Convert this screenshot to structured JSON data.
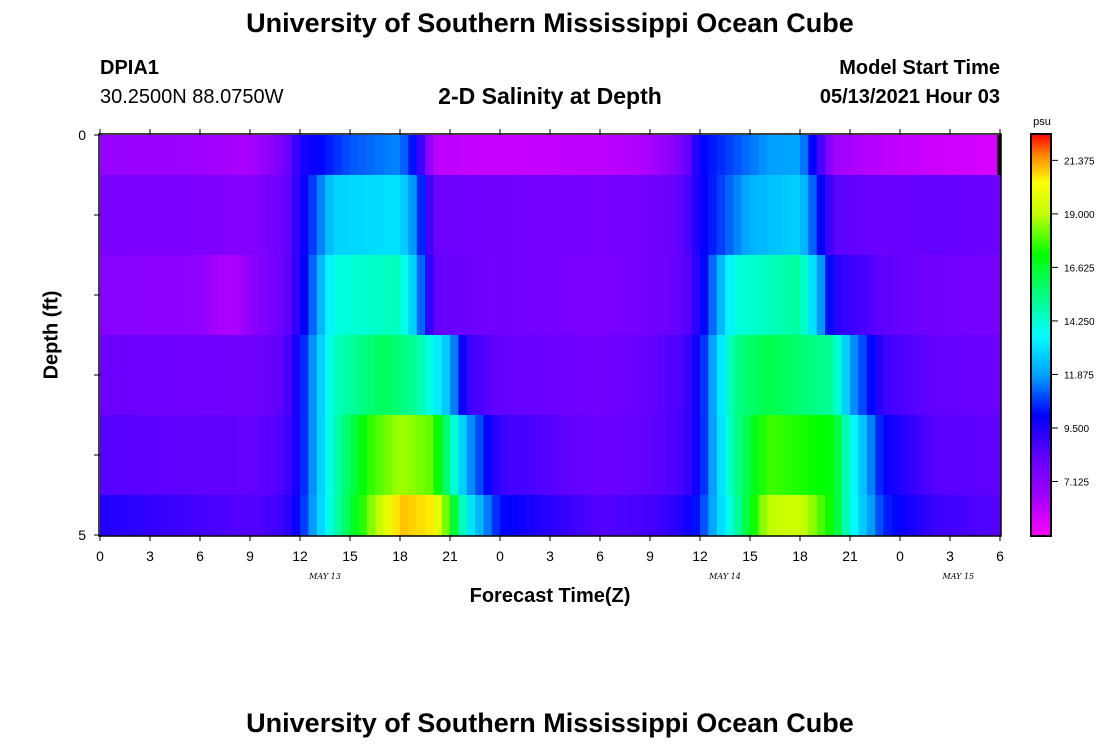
{
  "header": {
    "title": "University of Southern Mississippi Ocean Cube",
    "station_id": "DPIA1",
    "station_coords": "30.2500N  88.0750W",
    "plot_title": "2-D Salinity at Depth",
    "model_start_label": "Model Start Time",
    "model_start_value": "05/13/2021 Hour 03"
  },
  "footer": {
    "title": "University of Southern Mississippi Ocean Cube"
  },
  "chart_data": {
    "type": "heatmap",
    "title": "2-D Salinity at Depth",
    "xlabel": "Forecast Time(Z)",
    "ylabel": "Depth (ft)",
    "colorbar_unit": "psu",
    "colorbar_ticks": [
      "21.375",
      "19.000",
      "16.625",
      "14.250",
      "11.875",
      "9.500",
      "7.125"
    ],
    "colorbar_range": [
      4.75,
      22.5
    ],
    "y_tick_labels": [
      "0",
      "5"
    ],
    "y_range": [
      0,
      5
    ],
    "x_tick_labels": [
      "0",
      "3",
      "6",
      "9",
      "12",
      "15",
      "18",
      "21",
      "0",
      "3",
      "6",
      "9",
      "12",
      "15",
      "18",
      "21",
      "0",
      "3",
      "6"
    ],
    "x_range_hours": [
      0,
      54
    ],
    "date_labels": [
      "MAY 13",
      "MAY 14",
      "MAY 15"
    ],
    "depth_layers": [
      {
        "depth_range": [
          0,
          0.5
        ],
        "key_hours": [
          0,
          6,
          9,
          11,
          12,
          15,
          18,
          19,
          20,
          24,
          30,
          33,
          35,
          36,
          40,
          42,
          43,
          44,
          47,
          50,
          54
        ],
        "values": [
          6.8,
          6.6,
          6.3,
          7.6,
          9.5,
          11.0,
          11.6,
          9.8,
          6.0,
          5.8,
          6.0,
          6.3,
          7.6,
          10.0,
          11.8,
          12.0,
          9.4,
          6.5,
          6.0,
          5.7,
          5.5
        ]
      },
      {
        "depth_range": [
          0.5,
          1.5
        ],
        "key_hours": [
          0,
          6,
          9,
          11,
          12,
          14,
          18,
          19,
          20,
          24,
          30,
          33,
          35,
          36,
          39,
          42,
          43,
          44,
          47,
          50,
          54
        ],
        "values": [
          7.6,
          7.5,
          7.3,
          8.0,
          9.5,
          12.8,
          13.1,
          11.3,
          8.0,
          7.8,
          7.6,
          7.8,
          8.3,
          9.8,
          12.2,
          12.8,
          10.6,
          8.4,
          8.0,
          8.2,
          8.0
        ]
      },
      {
        "depth_range": [
          1.5,
          2.5
        ],
        "key_hours": [
          0,
          6,
          7,
          8,
          9,
          11,
          12,
          14,
          18,
          19,
          20,
          24,
          30,
          33,
          35,
          36,
          38,
          42,
          43,
          44,
          47,
          50,
          54
        ],
        "values": [
          7.2,
          7.0,
          6.4,
          6.2,
          7.0,
          8.0,
          9.5,
          14.0,
          14.6,
          12.2,
          8.2,
          7.8,
          7.5,
          7.8,
          8.2,
          9.6,
          14.0,
          15.0,
          12.5,
          9.4,
          8.3,
          7.8,
          7.6
        ]
      },
      {
        "depth_range": [
          2.5,
          3.5
        ],
        "key_hours": [
          0,
          9,
          11,
          12,
          14,
          17,
          19,
          21,
          22,
          24,
          30,
          33,
          35,
          36,
          38,
          40,
          44,
          45,
          47,
          50,
          54
        ],
        "values": [
          8.0,
          7.8,
          8.4,
          10.0,
          14.5,
          16.0,
          15.0,
          12.3,
          9.0,
          8.2,
          7.8,
          8.2,
          8.8,
          10.0,
          15.2,
          16.2,
          15.0,
          12.0,
          9.0,
          8.2,
          8.0
        ]
      },
      {
        "depth_range": [
          3.5,
          4.5
        ],
        "key_hours": [
          0,
          9,
          11,
          12,
          14,
          16,
          18,
          20,
          21,
          22,
          24,
          30,
          33,
          35,
          36,
          38,
          40,
          44,
          45,
          47,
          50,
          54
        ],
        "values": [
          8.5,
          8.2,
          8.6,
          10.0,
          14.5,
          17.5,
          18.7,
          18.0,
          15.0,
          12.0,
          9.0,
          8.0,
          8.3,
          8.8,
          10.0,
          15.0,
          17.8,
          17.0,
          14.0,
          10.0,
          8.5,
          8.3
        ]
      },
      {
        "depth_range": [
          4.5,
          5.0
        ],
        "key_hours": [
          0,
          9,
          11,
          12,
          14,
          16,
          18,
          20,
          21,
          22,
          24,
          30,
          33,
          35,
          36,
          38,
          40,
          42,
          44,
          45,
          47,
          50,
          54
        ],
        "values": [
          9.5,
          8.5,
          9.0,
          10.2,
          14.5,
          18.0,
          21.0,
          20.5,
          17.5,
          13.5,
          10.2,
          8.5,
          8.8,
          9.5,
          10.5,
          14.5,
          19.0,
          19.3,
          17.0,
          14.0,
          10.5,
          9.0,
          8.5
        ]
      }
    ],
    "grid": false,
    "colorbar_position": "right"
  }
}
